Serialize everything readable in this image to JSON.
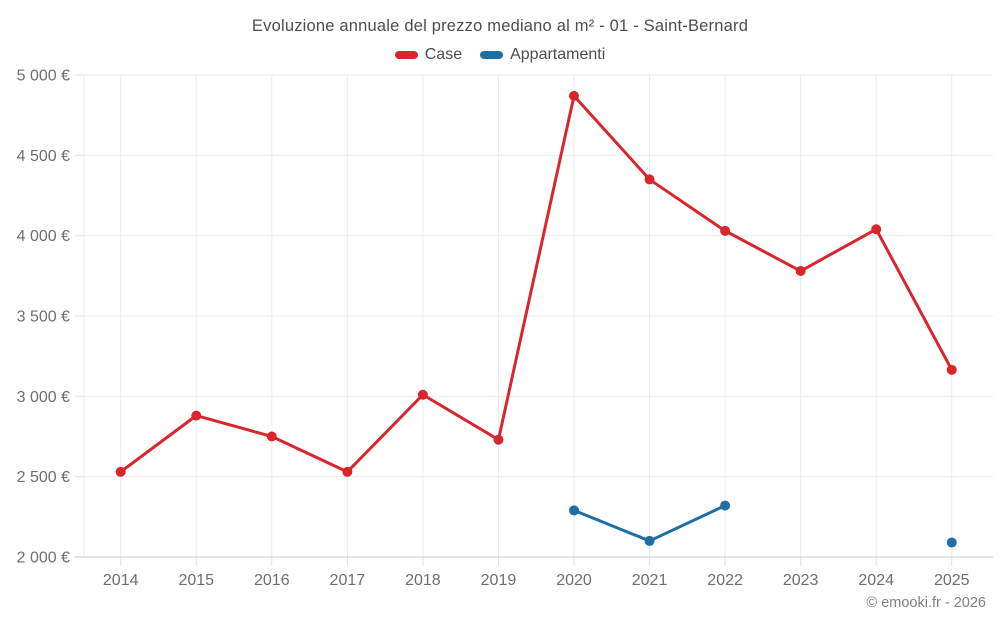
{
  "chart_data": {
    "type": "line",
    "title": "Evoluzione annuale del prezzo mediano al m² - 01 - Saint-Bernard",
    "categories": [
      "2014",
      "2015",
      "2016",
      "2017",
      "2018",
      "2019",
      "2020",
      "2021",
      "2022",
      "2023",
      "2024",
      "2025"
    ],
    "series": [
      {
        "name": "Case",
        "color": "#d9262c",
        "values": [
          2530,
          2880,
          2750,
          2530,
          3010,
          2730,
          4870,
          4350,
          4030,
          3780,
          4040,
          3165
        ]
      },
      {
        "name": "Appartamenti",
        "color": "#1d6fa5",
        "values": [
          null,
          null,
          null,
          null,
          null,
          null,
          2290,
          2100,
          2320,
          null,
          null,
          2090
        ]
      }
    ],
    "ylim": [
      2000,
      5000
    ],
    "y_tick_step": 500,
    "y_tick_labels": [
      "2 000 €",
      "2 500 €",
      "3 000 €",
      "3 500 €",
      "4 000 €",
      "4 500 €",
      "5 000 €"
    ],
    "grid": true,
    "legend_position": "top"
  },
  "footer": {
    "copyright": "© emooki.fr - 2026"
  }
}
